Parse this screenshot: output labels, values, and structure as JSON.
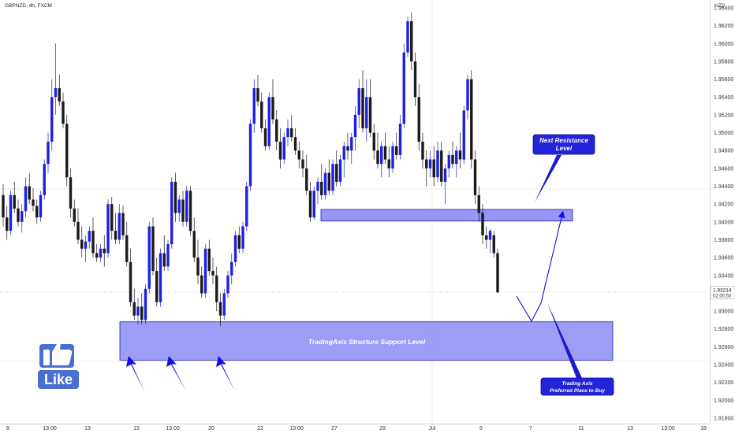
{
  "header": {
    "symbol_text": "GBPNZD, 4h, FXCM",
    "currency": "NZD"
  },
  "colors": {
    "bull": "#1e1ee6",
    "bear": "#1a1a1a",
    "zone_fill": "#7b7cf2",
    "zone_border": "#1c1cb3",
    "price_label_bg": "#ffffff",
    "arrow": "#1010e0"
  },
  "price_label": {
    "price": "1.93214",
    "countdown": "02:00:50"
  },
  "annotations": {
    "support_label": "TradingAxis Structure Support Level",
    "resistance_label_line1": "Next Resistance",
    "resistance_label_line2": "Level",
    "buy_label_line1": "Trading Axis",
    "buy_label_line2": "Preferred Place to Buy"
  },
  "like_badge": {
    "text": "Like",
    "icon": "thumbs-up-icon"
  },
  "chart_data": {
    "type": "candlestick",
    "title": "GBPNZD, 4h, FXCM",
    "y_axis_label": "NZD",
    "ylim": [
      1.9175,
      1.9645
    ],
    "y_ticks": [
      "1.96400",
      "1.96200",
      "1.96000",
      "1.95800",
      "1.95600",
      "1.95400",
      "1.95200",
      "1.95000",
      "1.94800",
      "1.94600",
      "1.94400",
      "1.94200",
      "1.94000",
      "1.93800",
      "1.93600",
      "1.93400",
      "1.93214",
      "1.93000",
      "1.92800",
      "1.92600",
      "1.92400",
      "1.92200",
      "1.92000",
      "1.91800"
    ],
    "x_tick_labels": [
      "8",
      "13:00",
      "13",
      "15",
      "13:00",
      "20",
      "22",
      "13:00",
      "27",
      "29",
      "Jul",
      "5",
      "7",
      "11",
      "13",
      "13:00",
      "18"
    ],
    "support_zone": {
      "low": 1.9245,
      "high": 1.9288
    },
    "resistance_zone": {
      "low": 1.9403,
      "high": 1.9413
    },
    "last_price": 1.93214,
    "candles": [
      [
        1.943,
        1.9442,
        1.9395,
        1.9405
      ],
      [
        1.9405,
        1.9418,
        1.938,
        1.939
      ],
      [
        1.939,
        1.9435,
        1.9385,
        1.943
      ],
      [
        1.943,
        1.9445,
        1.941,
        1.9415
      ],
      [
        1.9415,
        1.9425,
        1.9395,
        1.94
      ],
      [
        1.94,
        1.942,
        1.9388,
        1.9412
      ],
      [
        1.9412,
        1.945,
        1.9405,
        1.944
      ],
      [
        1.944,
        1.9455,
        1.942,
        1.9425
      ],
      [
        1.9425,
        1.9438,
        1.9412,
        1.9418
      ],
      [
        1.9418,
        1.9425,
        1.9398,
        1.9405
      ],
      [
        1.9405,
        1.9435,
        1.94,
        1.943
      ],
      [
        1.943,
        1.947,
        1.9425,
        1.9465
      ],
      [
        1.9465,
        1.95,
        1.9455,
        1.949
      ],
      [
        1.949,
        1.956,
        1.948,
        1.954
      ],
      [
        1.954,
        1.96,
        1.952,
        1.955
      ],
      [
        1.955,
        1.9565,
        1.953,
        1.9535
      ],
      [
        1.9535,
        1.9545,
        1.9505,
        1.951
      ],
      [
        1.951,
        1.952,
        1.944,
        1.945
      ],
      [
        1.945,
        1.946,
        1.9405,
        1.9415
      ],
      [
        1.9415,
        1.9425,
        1.9395,
        1.94
      ],
      [
        1.94,
        1.9415,
        1.9375,
        1.938
      ],
      [
        1.938,
        1.9395,
        1.936,
        1.937
      ],
      [
        1.937,
        1.9385,
        1.9355,
        1.9378
      ],
      [
        1.9378,
        1.9395,
        1.937,
        1.939
      ],
      [
        1.939,
        1.9405,
        1.936,
        1.9365
      ],
      [
        1.9365,
        1.9375,
        1.9355,
        1.936
      ],
      [
        1.936,
        1.9375,
        1.9355,
        1.937
      ],
      [
        1.937,
        1.9385,
        1.935,
        1.9365
      ],
      [
        1.9365,
        1.9425,
        1.936,
        1.942
      ],
      [
        1.942,
        1.9428,
        1.938,
        1.939
      ],
      [
        1.939,
        1.941,
        1.9375,
        1.938
      ],
      [
        1.938,
        1.942,
        1.9375,
        1.941
      ],
      [
        1.941,
        1.9418,
        1.938,
        1.9385
      ],
      [
        1.9385,
        1.94,
        1.935,
        1.9355
      ],
      [
        1.9355,
        1.937,
        1.9305,
        1.931
      ],
      [
        1.931,
        1.9325,
        1.929,
        1.9295
      ],
      [
        1.9295,
        1.9315,
        1.9285,
        1.9305
      ],
      [
        1.9305,
        1.932,
        1.9285,
        1.929
      ],
      [
        1.929,
        1.933,
        1.9286,
        1.9325
      ],
      [
        1.9325,
        1.94,
        1.932,
        1.9395
      ],
      [
        1.9395,
        1.9405,
        1.934,
        1.9345
      ],
      [
        1.9345,
        1.936,
        1.9305,
        1.931
      ],
      [
        1.931,
        1.937,
        1.9305,
        1.9365
      ],
      [
        1.9365,
        1.9385,
        1.9345,
        1.935
      ],
      [
        1.935,
        1.938,
        1.9345,
        1.9375
      ],
      [
        1.9375,
        1.945,
        1.937,
        1.9445
      ],
      [
        1.9445,
        1.9455,
        1.94,
        1.941
      ],
      [
        1.941,
        1.943,
        1.94,
        1.9425
      ],
      [
        1.9425,
        1.9435,
        1.9395,
        1.94
      ],
      [
        1.94,
        1.944,
        1.9395,
        1.9435
      ],
      [
        1.9435,
        1.944,
        1.9385,
        1.939
      ],
      [
        1.939,
        1.9405,
        1.9355,
        1.936
      ],
      [
        1.936,
        1.938,
        1.933,
        1.934
      ],
      [
        1.934,
        1.935,
        1.9315,
        1.932
      ],
      [
        1.932,
        1.9375,
        1.9315,
        1.937
      ],
      [
        1.937,
        1.938,
        1.934,
        1.9345
      ],
      [
        1.9345,
        1.936,
        1.933,
        1.934
      ],
      [
        1.934,
        1.935,
        1.93,
        1.931
      ],
      [
        1.931,
        1.932,
        1.9283,
        1.9295
      ],
      [
        1.9295,
        1.9325,
        1.929,
        1.932
      ],
      [
        1.932,
        1.9345,
        1.9315,
        1.934
      ],
      [
        1.934,
        1.9365,
        1.933,
        1.9355
      ],
      [
        1.9355,
        1.939,
        1.935,
        1.9385
      ],
      [
        1.9385,
        1.9395,
        1.9365,
        1.937
      ],
      [
        1.937,
        1.94,
        1.9365,
        1.9395
      ],
      [
        1.9395,
        1.9445,
        1.939,
        1.944
      ],
      [
        1.944,
        1.9515,
        1.9435,
        1.951
      ],
      [
        1.951,
        1.956,
        1.95,
        1.955
      ],
      [
        1.955,
        1.9565,
        1.953,
        1.9535
      ],
      [
        1.9535,
        1.9545,
        1.95,
        1.9505
      ],
      [
        1.9505,
        1.9515,
        1.948,
        1.9485
      ],
      [
        1.9485,
        1.9545,
        1.948,
        1.954
      ],
      [
        1.954,
        1.956,
        1.951,
        1.9515
      ],
      [
        1.9515,
        1.9525,
        1.948,
        1.949
      ],
      [
        1.949,
        1.9505,
        1.946,
        1.947
      ],
      [
        1.947,
        1.95,
        1.9465,
        1.9495
      ],
      [
        1.9495,
        1.9515,
        1.9485,
        1.9505
      ],
      [
        1.9505,
        1.952,
        1.949,
        1.9495
      ],
      [
        1.9495,
        1.9505,
        1.9475,
        1.948
      ],
      [
        1.948,
        1.949,
        1.946,
        1.947
      ],
      [
        1.947,
        1.948,
        1.945,
        1.946
      ],
      [
        1.946,
        1.9475,
        1.943,
        1.9435
      ],
      [
        1.9435,
        1.9445,
        1.94,
        1.9405
      ],
      [
        1.9405,
        1.944,
        1.9402,
        1.9435
      ],
      [
        1.9435,
        1.945,
        1.942,
        1.9445
      ],
      [
        1.9445,
        1.9465,
        1.9425,
        1.943
      ],
      [
        1.943,
        1.946,
        1.9425,
        1.9455
      ],
      [
        1.9455,
        1.947,
        1.943,
        1.9435
      ],
      [
        1.9435,
        1.947,
        1.943,
        1.9465
      ],
      [
        1.9465,
        1.948,
        1.944,
        1.9445
      ],
      [
        1.9445,
        1.9475,
        1.944,
        1.947
      ],
      [
        1.947,
        1.949,
        1.945,
        1.9485
      ],
      [
        1.9485,
        1.95,
        1.947,
        1.948
      ],
      [
        1.948,
        1.95,
        1.9465,
        1.9495
      ],
      [
        1.9495,
        1.953,
        1.948,
        1.952
      ],
      [
        1.952,
        1.956,
        1.9505,
        1.955
      ],
      [
        1.955,
        1.957,
        1.95,
        1.9505
      ],
      [
        1.9505,
        1.956,
        1.949,
        1.954
      ],
      [
        1.954,
        1.956,
        1.9495,
        1.95
      ],
      [
        1.95,
        1.951,
        1.947,
        1.948
      ],
      [
        1.948,
        1.95,
        1.946,
        1.9465
      ],
      [
        1.9465,
        1.949,
        1.945,
        1.9485
      ],
      [
        1.9485,
        1.95,
        1.9465,
        1.947
      ],
      [
        1.947,
        1.9485,
        1.945,
        1.946
      ],
      [
        1.946,
        1.949,
        1.9455,
        1.9485
      ],
      [
        1.9485,
        1.95,
        1.947,
        1.9475
      ],
      [
        1.9475,
        1.952,
        1.947,
        1.951
      ],
      [
        1.951,
        1.96,
        1.9505,
        1.959
      ],
      [
        1.959,
        1.963,
        1.9585,
        1.9625
      ],
      [
        1.9625,
        1.9635,
        1.957,
        1.958
      ],
      [
        1.958,
        1.959,
        1.953,
        1.954
      ],
      [
        1.954,
        1.9555,
        1.948,
        1.949
      ],
      [
        1.949,
        1.95,
        1.946,
        1.947
      ],
      [
        1.947,
        1.948,
        1.944,
        1.946
      ],
      [
        1.946,
        1.948,
        1.945,
        1.947
      ],
      [
        1.947,
        1.9485,
        1.944,
        1.945
      ],
      [
        1.945,
        1.949,
        1.9445,
        1.948
      ],
      [
        1.948,
        1.949,
        1.944,
        1.9445
      ],
      [
        1.9445,
        1.9465,
        1.942,
        1.946
      ],
      [
        1.946,
        1.948,
        1.945,
        1.9475
      ],
      [
        1.9475,
        1.949,
        1.946,
        1.9465
      ],
      [
        1.9465,
        1.9485,
        1.945,
        1.948
      ],
      [
        1.948,
        1.95,
        1.946,
        1.947
      ],
      [
        1.947,
        1.953,
        1.9465,
        1.9525
      ],
      [
        1.9525,
        1.9565,
        1.9515,
        1.956
      ],
      [
        1.956,
        1.957,
        1.946,
        1.947
      ],
      [
        1.947,
        1.948,
        1.942,
        1.943
      ],
      [
        1.943,
        1.944,
        1.94,
        1.941
      ],
      [
        1.941,
        1.942,
        1.9375,
        1.9385
      ],
      [
        1.9385,
        1.9395,
        1.937,
        1.938
      ],
      [
        1.938,
        1.9392,
        1.9365,
        1.939
      ],
      [
        1.9385,
        1.939,
        1.936,
        1.9365
      ],
      [
        1.9365,
        1.937,
        1.932,
        1.9321
      ]
    ],
    "projected_path": [
      [
        1.9321,
        1.9288
      ],
      [
        1.9318,
        1.9288
      ],
      [
        1.941,
        1.9288
      ]
    ]
  }
}
